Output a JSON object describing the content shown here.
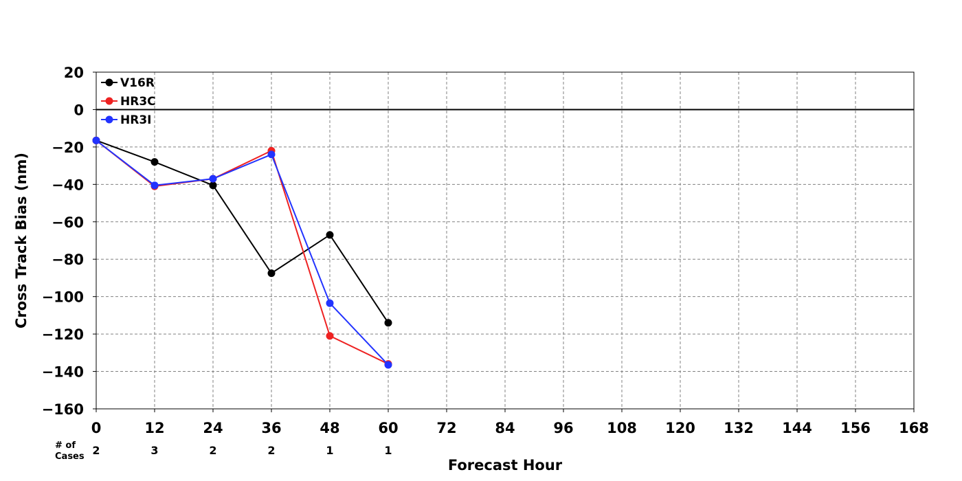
{
  "chart_data": {
    "type": "line",
    "title": "",
    "xlabel": "Forecast Hour",
    "ylabel": "Cross Track Bias (nm)",
    "xlim": [
      0,
      168
    ],
    "ylim": [
      -160,
      20
    ],
    "x_ticks": [
      0,
      12,
      24,
      36,
      48,
      60,
      72,
      84,
      96,
      108,
      120,
      132,
      144,
      156,
      168
    ],
    "y_ticks": [
      20,
      0,
      -20,
      -40,
      -60,
      -80,
      -100,
      -120,
      -140,
      -160
    ],
    "grid": true,
    "legend_position": "top-left",
    "zero_line": true,
    "series": [
      {
        "name": "V16R",
        "color": "#000000",
        "x": [
          0,
          12,
          24,
          36,
          48,
          60
        ],
        "values": [
          -16.5,
          -28,
          -40.5,
          -87.5,
          -67,
          -114
        ]
      },
      {
        "name": "HR3C",
        "color": "#ee2222",
        "x": [
          0,
          12,
          24,
          36,
          48,
          60
        ],
        "values": [
          -16.5,
          -41,
          -37,
          -22,
          -121,
          -136
        ]
      },
      {
        "name": "HR3I",
        "color": "#2233ff",
        "x": [
          0,
          12,
          24,
          36,
          48,
          60
        ],
        "values": [
          -16.5,
          -40.5,
          -37,
          -24,
          -103.5,
          -136.5
        ]
      }
    ],
    "cases": {
      "label_line1": "# of",
      "label_line2": "Cases",
      "x": [
        0,
        12,
        24,
        36,
        48,
        60
      ],
      "values": [
        "2",
        "3",
        "2",
        "2",
        "1",
        "1"
      ]
    }
  }
}
